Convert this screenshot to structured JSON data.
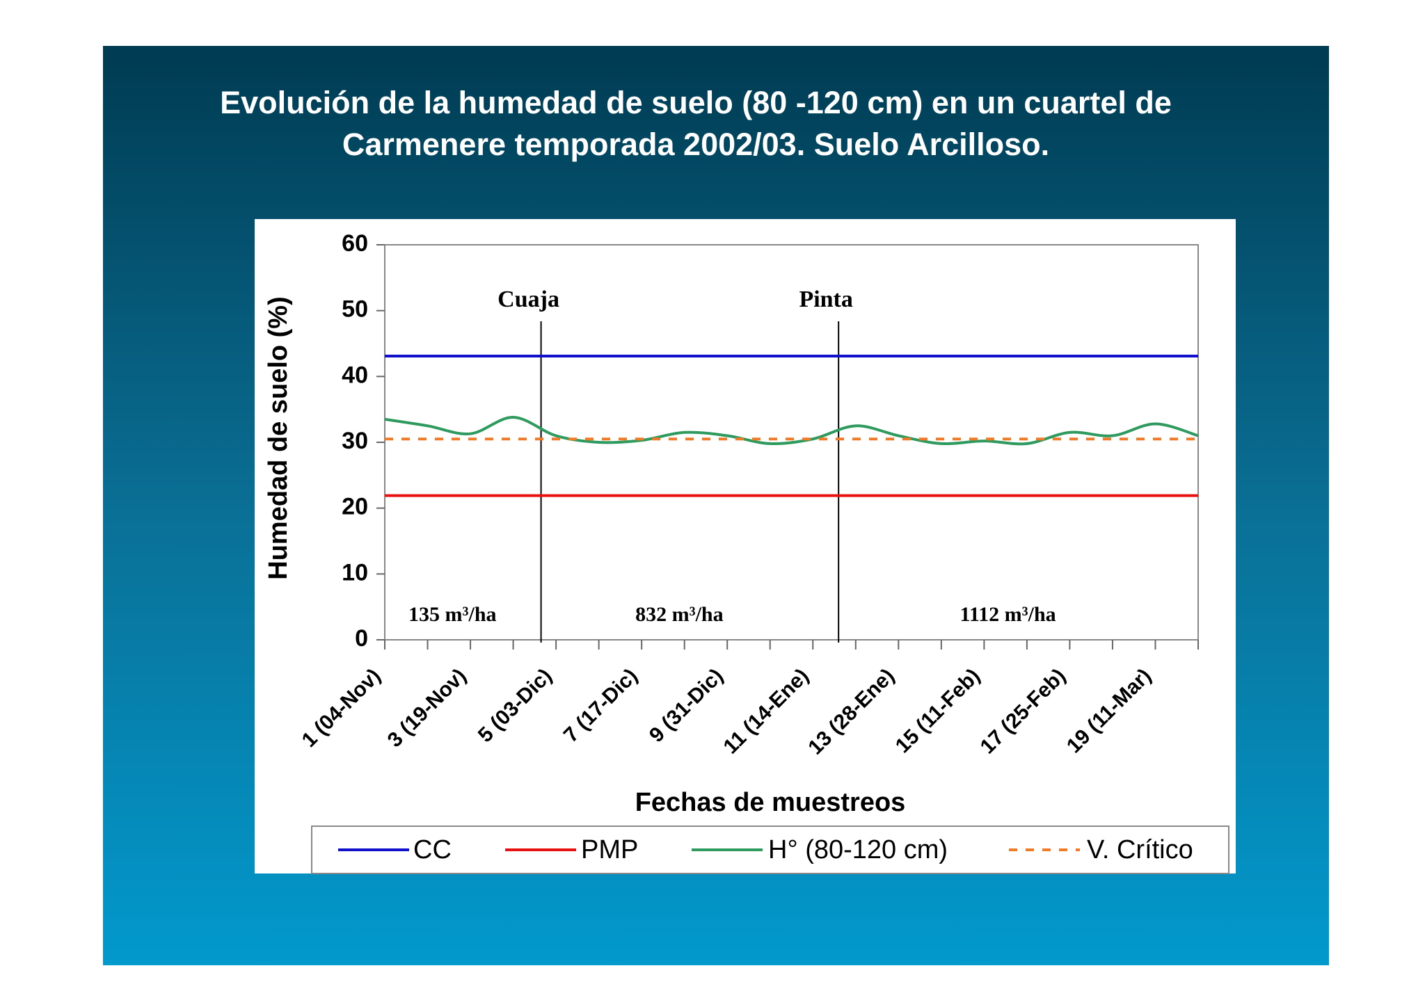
{
  "chart_data": {
    "type": "line",
    "title": "Evolución de la humedad de suelo (80 -120 cm) en un cuartel de Carmenere temporada 2002/03. Suelo Arcilloso.",
    "x_label": "Fechas de muestreos",
    "y_label": "Humedad de suelo (%)",
    "categories": [
      "1 (04-Nov)",
      null,
      "3 (19-Nov)",
      null,
      "5 (03-Dic)",
      null,
      "7 (17-Dic)",
      null,
      "9 (31-Dic)",
      null,
      "11 (14-Ene)",
      null,
      "13 (28-Ene)",
      null,
      "15 (11-Feb)",
      null,
      "17 (25-Feb)",
      null,
      "19 (11-Mar)",
      null
    ],
    "ylim": [
      0,
      60
    ],
    "yticks": [
      0,
      10,
      20,
      30,
      40,
      50,
      60
    ],
    "series": [
      {
        "name": "CC",
        "color": "#1010cc",
        "value": 43.1
      },
      {
        "name": "PMP",
        "color": "#e81010",
        "value": 21.9
      },
      {
        "name": "H° (80-120 cm)",
        "color": "#2e9a5e",
        "values": [
          33.5,
          32.5,
          31.3,
          33.8,
          31,
          30,
          30.3,
          31.5,
          31,
          29.8,
          30.5,
          32.5,
          31,
          29.8,
          30.2,
          29.8,
          31.5,
          31,
          32.8,
          31
        ]
      },
      {
        "name": "V. Crítico",
        "color": "#f07a28",
        "value": 30.5,
        "dashed": true
      }
    ],
    "annotations": [
      {
        "text": "Cuaja",
        "x": 3.65
      },
      {
        "text": "Pinta",
        "x": 10.6
      }
    ],
    "region_labels": [
      "135 m³/ha",
      "832 m³/ha",
      "1112 m³/ha"
    ],
    "legend": "bottom"
  }
}
